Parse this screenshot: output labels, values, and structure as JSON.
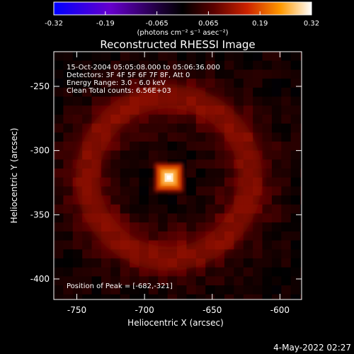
{
  "chart_data": {
    "type": "heatmap",
    "title": "Reconstructed RHESSI Image",
    "xlabel": "Heliocentric X (arcsec)",
    "ylabel": "Heliocentric Y (arcsec)",
    "xlim": [
      -767,
      -584
    ],
    "ylim": [
      -416,
      -223
    ],
    "x_ticks": [
      -750,
      -700,
      -650,
      -600
    ],
    "y_ticks": [
      -250,
      -300,
      -350,
      -400
    ],
    "colorbar": {
      "range": [
        -0.32,
        0.32
      ],
      "ticks": [
        "-0.32",
        "-0.19",
        "-0.065",
        "0.065",
        "0.19",
        "0.32"
      ],
      "unit_label": "(photons cm⁻² s⁻¹ asec⁻²)",
      "colors": [
        "#0000ff",
        "#6600cc",
        "#1a0033",
        "#000000",
        "#5a0000",
        "#cc2200",
        "#ff9900",
        "#ffffff"
      ]
    },
    "annotations": [
      "15-Oct-2004 05:05:08.000 to 05:06:36.000",
      "Detectors: 3F 4F 5F 6F 7F 8F, Att 0",
      "Energy Range: 3.0 - 6.0 keV",
      "Clean    Total counts: 6.56E+03"
    ],
    "peak_label": "Position of Peak = [-682,-321]",
    "peak": {
      "x": -682,
      "y": -321,
      "value": 0.32
    },
    "ring": {
      "center_x": -682,
      "center_y": -321,
      "radius_arcsec": 60,
      "value": 0.08
    },
    "background": -0.03
  },
  "timestamp": "4-May-2022 02:27"
}
